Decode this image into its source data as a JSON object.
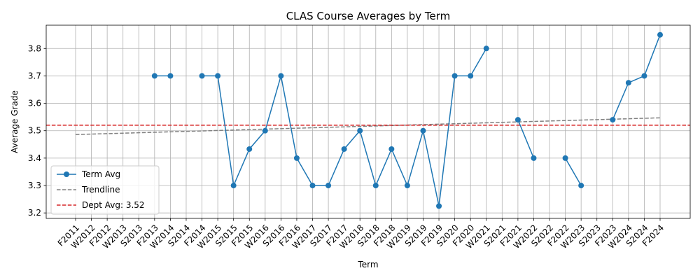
{
  "chart_data": {
    "type": "line",
    "title": "CLAS Course Averages by Term",
    "xlabel": "Term",
    "ylabel": "Average Grade",
    "ylim": [
      3.18,
      3.885
    ],
    "yticks": [
      3.2,
      3.3,
      3.4,
      3.5,
      3.6,
      3.7,
      3.8
    ],
    "grid": true,
    "legend_position": "lower-left",
    "categories": [
      "F2011",
      "W2012",
      "F2012",
      "W2013",
      "S2013",
      "F2013",
      "W2014",
      "S2014",
      "F2014",
      "W2015",
      "S2015",
      "F2015",
      "W2016",
      "S2016",
      "F2016",
      "W2017",
      "S2017",
      "F2017",
      "W2018",
      "S2018",
      "F2018",
      "W2019",
      "S2019",
      "F2019",
      "S2020",
      "F2020",
      "W2021",
      "S2021",
      "F2021",
      "W2022",
      "S2022",
      "F2022",
      "W2023",
      "S2023",
      "F2023",
      "W2024",
      "S2024",
      "F2024"
    ],
    "series": [
      {
        "name": "Term Avg",
        "color": "#1f77b4",
        "values": [
          null,
          null,
          null,
          null,
          null,
          3.7,
          3.7,
          null,
          3.7,
          3.7,
          3.3,
          3.433,
          3.5,
          3.7,
          3.4,
          3.3,
          3.3,
          3.433,
          3.5,
          3.3,
          3.433,
          3.3,
          3.5,
          3.225,
          3.7,
          3.7,
          3.8,
          null,
          3.54,
          3.4,
          null,
          3.4,
          3.3,
          null,
          3.54,
          3.675,
          3.7,
          3.85
        ]
      },
      {
        "name": "Trendline",
        "color": "#808080",
        "style": "dashed",
        "start": 3.486,
        "end": 3.547
      },
      {
        "name": "Dept Avg: 3.52",
        "color": "#d62728",
        "style": "dashed",
        "value": 3.52
      }
    ]
  }
}
